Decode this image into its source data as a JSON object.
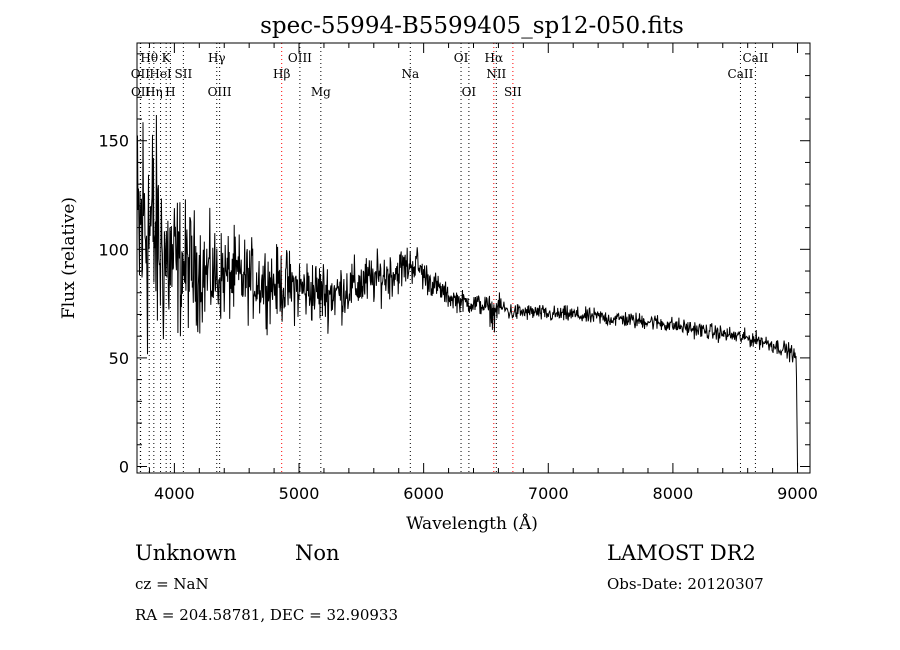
{
  "chart_data": {
    "type": "line",
    "title": "spec-55994-B5599405_sp12-050.fits",
    "xlabel": "Wavelength (Å)",
    "ylabel": "Flux (relative)",
    "xlim": [
      3700,
      9100
    ],
    "ylim": [
      -3,
      195
    ],
    "x_ticks": [
      4000,
      5000,
      6000,
      7000,
      8000,
      9000
    ],
    "y_ticks": [
      0,
      50,
      100,
      150
    ],
    "x_minor_step": 200,
    "y_minor_step": 10,
    "grid": false,
    "series": [
      {
        "color": "#000000",
        "x": [
          3700,
          3760,
          3800,
          3850,
          3900,
          3950,
          4000,
          4100,
          4200,
          4300,
          4400,
          4500,
          4600,
          4700,
          4800,
          4900,
          5000,
          5100,
          5200,
          5300,
          5400,
          5500,
          5600,
          5700,
          5800,
          5850,
          5900,
          5950,
          6000,
          6100,
          6200,
          6300,
          6400,
          6500,
          6562,
          6600,
          6700,
          6800,
          6900,
          7000,
          7100,
          7200,
          7300,
          7400,
          7500,
          7600,
          7700,
          7800,
          7900,
          8000,
          8100,
          8200,
          8300,
          8400,
          8500,
          8600,
          8700,
          8800,
          8900,
          8960,
          8990,
          9000
        ],
        "mean": [
          100,
          115,
          110,
          105,
          98,
          95,
          93,
          92,
          90,
          88,
          88,
          87,
          86,
          85,
          84,
          83,
          82,
          81,
          80,
          80,
          82,
          84,
          86,
          88,
          90,
          92,
          93,
          93,
          88,
          83,
          78,
          76,
          75,
          74,
          70,
          74,
          71,
          71,
          71,
          70,
          70,
          70,
          69,
          69,
          68,
          68,
          67,
          67,
          66,
          65,
          64,
          63,
          62,
          61,
          60,
          59,
          58,
          56,
          54,
          52,
          50,
          0
        ],
        "noise": [
          48,
          55,
          50,
          42,
          36,
          32,
          28,
          22,
          20,
          18,
          16,
          16,
          14,
          14,
          13,
          13,
          12,
          12,
          12,
          11,
          10,
          10,
          9,
          9,
          8,
          8,
          7,
          7,
          6,
          5,
          4,
          4,
          4,
          4,
          6,
          4,
          3.5,
          3,
          3,
          3,
          3,
          3,
          3,
          3,
          3,
          3,
          3,
          3,
          3,
          3,
          3,
          3,
          3,
          3,
          3,
          3,
          3,
          3,
          3,
          3,
          2,
          0
        ]
      }
    ],
    "lines": [
      {
        "name": "Hθ",
        "wavelength": 3798,
        "color": "#000000",
        "row": 0
      },
      {
        "name": "K",
        "wavelength": 3934,
        "color": "#000000",
        "row": 0
      },
      {
        "name": "Hγ",
        "wavelength": 4340,
        "color": "#000000",
        "row": 0
      },
      {
        "name": "OIII",
        "wavelength": 5007,
        "color": "#000000",
        "row": 0
      },
      {
        "name": "OI",
        "wavelength": 6300,
        "color": "#000000",
        "row": 0
      },
      {
        "name": "Hα",
        "wavelength": 6563,
        "color": "#ff0000",
        "row": 0
      },
      {
        "name": "CaII",
        "wavelength": 8662,
        "color": "#000000",
        "row": 0
      },
      {
        "name": "OII",
        "wavelength": 3727,
        "color": "#000000",
        "row": 1
      },
      {
        "name": "HeI",
        "wavelength": 3889,
        "color": "#000000",
        "row": 1
      },
      {
        "name": "SII",
        "wavelength": 4072,
        "color": "#000000",
        "row": 1
      },
      {
        "name": "Hβ",
        "wavelength": 4861,
        "color": "#ff0000",
        "row": 1
      },
      {
        "name": "Na",
        "wavelength": 5893,
        "color": "#000000",
        "row": 1
      },
      {
        "name": "NII",
        "wavelength": 6583,
        "color": "#000000",
        "row": 1
      },
      {
        "name": "CaII",
        "wavelength": 8542,
        "color": "#000000",
        "row": 1
      },
      {
        "name": "OII",
        "wavelength": 3729,
        "color": "#000000",
        "row": 2
      },
      {
        "name": "Hη",
        "wavelength": 3835,
        "color": "#000000",
        "row": 2
      },
      {
        "name": "H",
        "wavelength": 3968,
        "color": "#000000",
        "row": 2
      },
      {
        "name": "OIII",
        "wavelength": 4363,
        "color": "#000000",
        "row": 2
      },
      {
        "name": "Mg",
        "wavelength": 5175,
        "color": "#000000",
        "row": 2
      },
      {
        "name": "OI",
        "wavelength": 6363,
        "color": "#000000",
        "row": 2
      },
      {
        "name": "SII",
        "wavelength": 6716,
        "color": "#ff0000",
        "row": 2
      }
    ]
  },
  "info": {
    "class": "Unknown",
    "subclass": "Non",
    "survey": "LAMOST DR2",
    "cz": "cz = NaN",
    "obs_date": "Obs-Date: 20120307",
    "coords": "RA = 204.58781, DEC =  32.90933"
  }
}
